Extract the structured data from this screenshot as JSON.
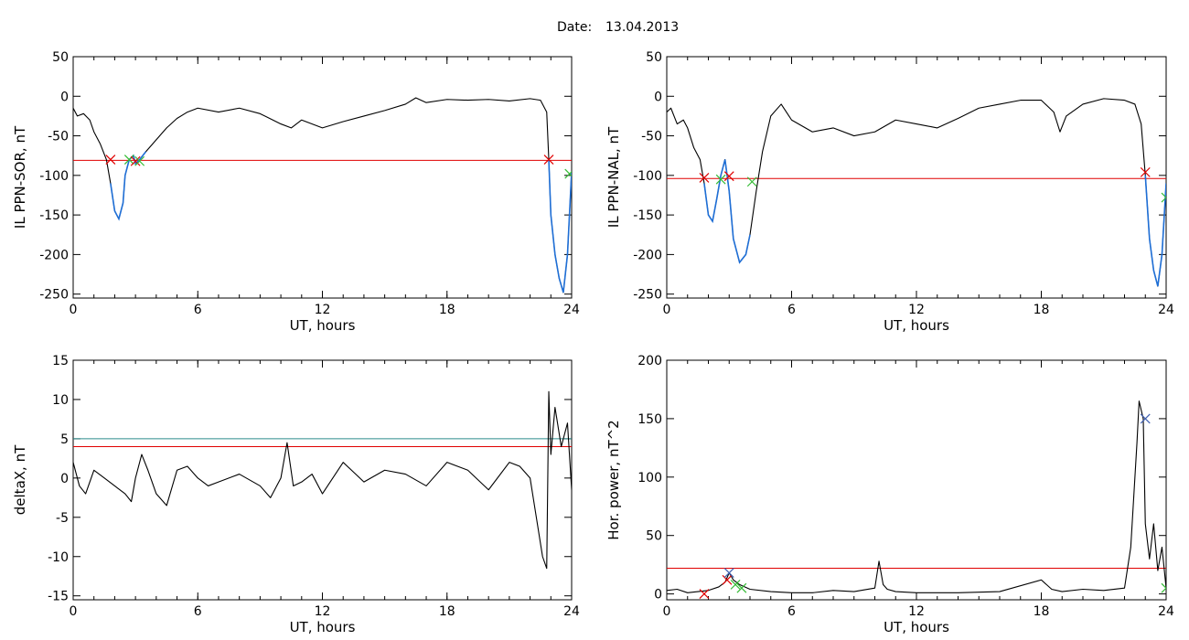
{
  "header": {
    "date_label": "Date:",
    "date_value": "13.04.2013"
  },
  "colors": {
    "trace": "#000000",
    "threshold": "#e00000",
    "threshold2": "#2a8a8a",
    "highlight": "#1f6fd6",
    "marker_red": "#e00000",
    "marker_green": "#33bb33",
    "marker_blue": "#4060b0"
  },
  "chart_data": [
    {
      "type": "line",
      "id": "il-sor",
      "xlabel": "UT, hours",
      "ylabel": "IL PPN-SOR, nT",
      "xlim": [
        0,
        24
      ],
      "ylim": [
        -255,
        50
      ],
      "xticks": [
        0,
        6,
        12,
        18,
        24
      ],
      "yticks": [
        50,
        0,
        -50,
        -100,
        -150,
        -200,
        -250
      ],
      "thresholds": [
        -81
      ],
      "x": [
        0,
        0.2,
        0.5,
        0.8,
        1.0,
        1.3,
        1.6,
        1.8,
        2.0,
        2.2,
        2.4,
        2.5,
        2.7,
        2.9,
        3.0,
        3.2,
        3.5,
        4.0,
        4.5,
        5.0,
        5.5,
        6.0,
        7,
        8,
        9,
        10,
        10.5,
        11,
        12,
        13,
        14,
        15,
        16,
        16.5,
        17,
        18,
        19,
        20,
        21,
        22,
        22.5,
        22.8,
        22.9,
        23.0,
        23.2,
        23.4,
        23.6,
        23.8,
        24.0
      ],
      "y": [
        -15,
        -25,
        -22,
        -30,
        -45,
        -60,
        -80,
        -110,
        -145,
        -155,
        -135,
        -100,
        -80,
        -75,
        -85,
        -80,
        -70,
        -55,
        -40,
        -28,
        -20,
        -15,
        -20,
        -15,
        -22,
        -35,
        -40,
        -30,
        -40,
        -32,
        -25,
        -18,
        -10,
        -2,
        -8,
        -4,
        -5,
        -4,
        -6,
        -3,
        -5,
        -20,
        -80,
        -150,
        -200,
        -230,
        -248,
        -200,
        -95
      ],
      "highlight_ranges": [
        [
          1.8,
          3.5
        ],
        [
          22.9,
          24
        ]
      ],
      "markers": [
        {
          "x": 1.8,
          "y": -80,
          "color": "red"
        },
        {
          "x": 2.7,
          "y": -80,
          "color": "green"
        },
        {
          "x": 3.0,
          "y": -82,
          "color": "red"
        },
        {
          "x": 3.2,
          "y": -82,
          "color": "green"
        },
        {
          "x": 22.9,
          "y": -80,
          "color": "red"
        },
        {
          "x": 23.9,
          "y": -98,
          "color": "green"
        }
      ]
    },
    {
      "type": "line",
      "id": "il-nal",
      "xlabel": "UT, hours",
      "ylabel": "IL PPN-NAL, nT",
      "xlim": [
        0,
        24
      ],
      "ylim": [
        -255,
        50
      ],
      "xticks": [
        0,
        6,
        12,
        18,
        24
      ],
      "yticks": [
        50,
        0,
        -50,
        -100,
        -150,
        -200,
        -250
      ],
      "thresholds": [
        -104
      ],
      "x": [
        0,
        0.2,
        0.5,
        0.8,
        1.0,
        1.3,
        1.6,
        1.8,
        2.0,
        2.2,
        2.4,
        2.6,
        2.8,
        3.0,
        3.2,
        3.5,
        3.8,
        4.0,
        4.3,
        4.6,
        5.0,
        5.5,
        6.0,
        7,
        8,
        9,
        10,
        11,
        12,
        13,
        14,
        15,
        16,
        17,
        18,
        18.6,
        18.9,
        19.2,
        20,
        21,
        22,
        22.5,
        22.8,
        23.0,
        23.2,
        23.4,
        23.6,
        23.8,
        24.0
      ],
      "y": [
        -20,
        -15,
        -35,
        -30,
        -40,
        -65,
        -80,
        -110,
        -150,
        -158,
        -130,
        -100,
        -80,
        -120,
        -180,
        -210,
        -200,
        -175,
        -120,
        -70,
        -25,
        -10,
        -30,
        -45,
        -40,
        -50,
        -45,
        -30,
        -35,
        -40,
        -28,
        -15,
        -10,
        -5,
        -5,
        -20,
        -45,
        -25,
        -10,
        -3,
        -5,
        -10,
        -35,
        -100,
        -180,
        -220,
        -240,
        -200,
        -110
      ],
      "highlight_ranges": [
        [
          1.8,
          4.2
        ],
        [
          23.0,
          24
        ]
      ],
      "markers": [
        {
          "x": 1.8,
          "y": -103,
          "color": "red"
        },
        {
          "x": 2.6,
          "y": -105,
          "color": "green"
        },
        {
          "x": 3.0,
          "y": -101,
          "color": "red"
        },
        {
          "x": 4.1,
          "y": -108,
          "color": "green"
        },
        {
          "x": 23.0,
          "y": -96,
          "color": "red"
        },
        {
          "x": 24.0,
          "y": -128,
          "color": "green"
        }
      ]
    },
    {
      "type": "line",
      "id": "deltax",
      "xlabel": "UT, hours",
      "ylabel": "deltaX, nT",
      "xlim": [
        0,
        24
      ],
      "ylim": [
        -15.5,
        15
      ],
      "xticks": [
        0,
        6,
        12,
        18,
        24
      ],
      "yticks": [
        15,
        10,
        5,
        0,
        -5,
        -10,
        -15
      ],
      "thresholds": [
        4.0,
        5.0
      ],
      "x": [
        0,
        0.3,
        0.6,
        1.0,
        1.5,
        2.0,
        2.5,
        2.8,
        3.0,
        3.3,
        3.6,
        4.0,
        4.5,
        5.0,
        5.5,
        6.0,
        6.5,
        7.0,
        8.0,
        9.0,
        9.5,
        10.0,
        10.3,
        10.6,
        11.0,
        11.5,
        12.0,
        13.0,
        14.0,
        15.0,
        16.0,
        17.0,
        18.0,
        19.0,
        20.0,
        21.0,
        21.5,
        22.0,
        22.3,
        22.6,
        22.8,
        22.9,
        23.0,
        23.2,
        23.5,
        23.8,
        24.0
      ],
      "y": [
        2,
        -1,
        -2,
        1,
        0,
        -1,
        -2,
        -3,
        0,
        3,
        1,
        -2,
        -3.5,
        1,
        1.5,
        0,
        -1,
        -0.5,
        0.5,
        -1,
        -2.5,
        0,
        4.5,
        -1,
        -0.5,
        0.5,
        -2,
        2,
        -0.5,
        1,
        0.5,
        -1,
        2,
        1,
        -1.5,
        2,
        1.5,
        0,
        -5,
        -10,
        -11.5,
        11,
        3,
        9,
        4,
        7,
        -1.5
      ]
    },
    {
      "type": "line",
      "id": "hor-power",
      "xlabel": "UT, hours",
      "ylabel": "Hor. power, nT^2",
      "xlim": [
        0,
        24
      ],
      "ylim": [
        -5,
        200
      ],
      "xticks": [
        0,
        6,
        12,
        18,
        24
      ],
      "yticks": [
        200,
        150,
        100,
        50,
        0
      ],
      "thresholds": [
        22
      ],
      "x": [
        0,
        0.5,
        1.0,
        1.5,
        2.0,
        2.5,
        2.8,
        3.0,
        3.2,
        3.5,
        4.0,
        5.0,
        6.0,
        7.0,
        8.0,
        9.0,
        10.0,
        10.2,
        10.4,
        10.6,
        11.0,
        12.0,
        14.0,
        16.0,
        18.0,
        18.5,
        19.0,
        20.0,
        21.0,
        22.0,
        22.3,
        22.6,
        22.7,
        22.9,
        23.0,
        23.2,
        23.4,
        23.6,
        23.8,
        24.0
      ],
      "y": [
        3,
        4,
        1,
        2,
        3,
        6,
        10,
        18,
        12,
        8,
        4,
        2,
        1,
        1,
        3,
        2,
        5,
        28,
        8,
        4,
        2,
        1,
        1,
        2,
        12,
        4,
        2,
        4,
        3,
        5,
        40,
        130,
        165,
        150,
        60,
        30,
        60,
        20,
        40,
        5
      ],
      "markers": [
        {
          "x": 1.8,
          "y": 0,
          "color": "red"
        },
        {
          "x": 2.9,
          "y": 12,
          "color": "red"
        },
        {
          "x": 3.0,
          "y": 18,
          "color": "blue"
        },
        {
          "x": 3.3,
          "y": 8,
          "color": "green"
        },
        {
          "x": 3.6,
          "y": 5,
          "color": "green"
        },
        {
          "x": 23.0,
          "y": 150,
          "color": "blue"
        },
        {
          "x": 24.0,
          "y": 5,
          "color": "green"
        }
      ]
    }
  ]
}
